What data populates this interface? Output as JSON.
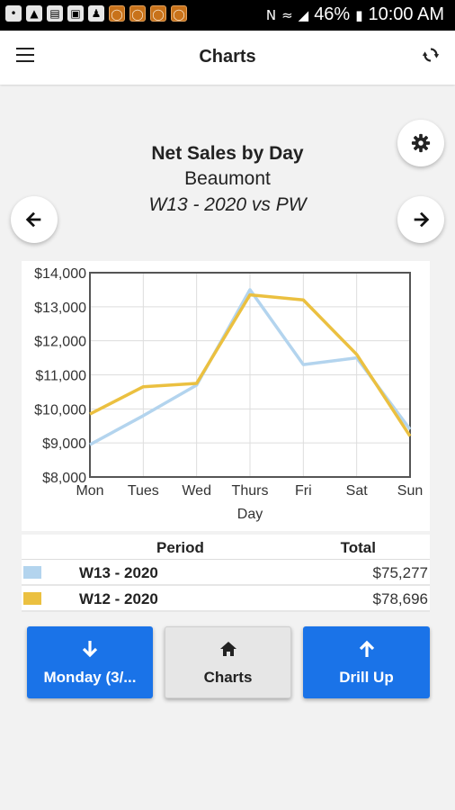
{
  "status_bar": {
    "battery": "46%",
    "time": "10:00 AM"
  },
  "app_bar": {
    "title": "Charts"
  },
  "chart_heading": {
    "title": "Net Sales by Day",
    "location": "Beaumont",
    "period": "W13 - 2020 vs PW"
  },
  "chart_data": {
    "type": "line",
    "title": "",
    "xlabel": "Day",
    "ylabel": "",
    "categories": [
      "Mon",
      "Tues",
      "Wed",
      "Thurs",
      "Fri",
      "Sat",
      "Sun"
    ],
    "ylim": [
      8000,
      14000
    ],
    "yticks": [
      8000,
      9000,
      10000,
      11000,
      12000,
      13000,
      14000
    ],
    "ytick_labels": [
      "$8,000",
      "$9,000",
      "$10,000",
      "$11,000",
      "$12,000",
      "$13,000",
      "$14,000"
    ],
    "grid": true,
    "series": [
      {
        "name": "W13 - 2020",
        "color": "#b3d4ee",
        "values": [
          8950,
          9800,
          10700,
          13500,
          11300,
          11500,
          9400
        ]
      },
      {
        "name": "W12 - 2020",
        "color": "#ebc040",
        "values": [
          9850,
          10650,
          10750,
          13350,
          13200,
          11600,
          9200
        ]
      }
    ]
  },
  "legend_table": {
    "header_period": "Period",
    "header_total": "Total",
    "rows": [
      {
        "period": "W13 - 2020",
        "total": "$75,277",
        "color": "#b3d4ee"
      },
      {
        "period": "W12 - 2020",
        "total": "$78,696",
        "color": "#ebc040"
      }
    ]
  },
  "buttons": {
    "drill_down": "Monday (3/...",
    "charts": "Charts",
    "drill_up": "Drill Up"
  },
  "colors": {
    "accent": "#1a73e8",
    "plot_border": "#555555",
    "grid": "#dddddd"
  }
}
